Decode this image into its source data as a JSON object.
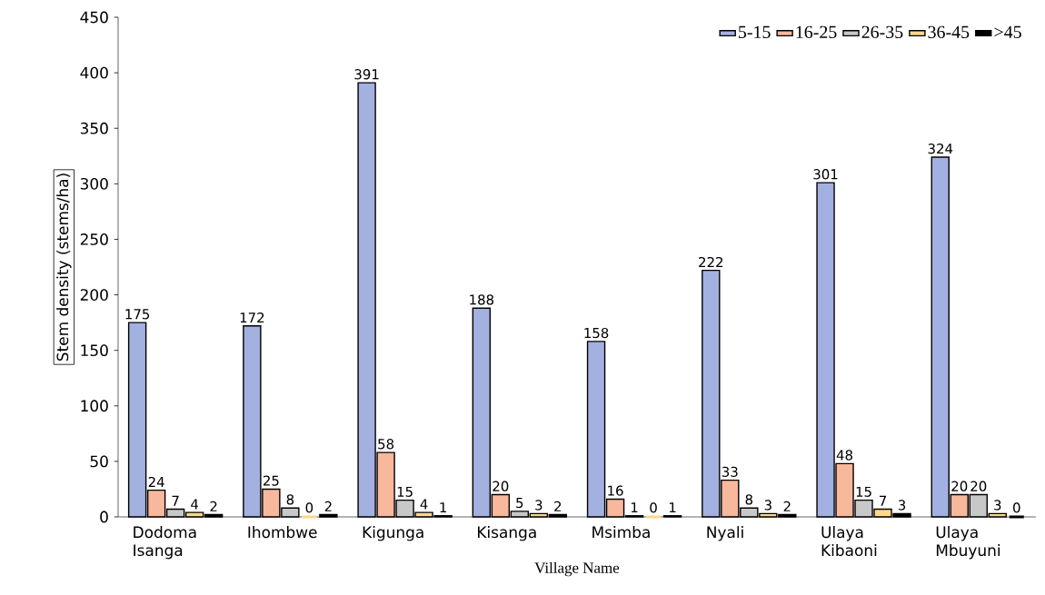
{
  "chart_data": {
    "type": "bar",
    "xlabel": "Village Name",
    "ylabel": "Stem density (stems/ha)",
    "categories": [
      "Dodoma Isanga",
      "Ihombwe",
      "Kigunga",
      "Kisanga",
      "Msimba",
      "Nyali",
      "Ulaya Kibaoni",
      "Ulaya Mbuyuni"
    ],
    "series": [
      {
        "name": "5-15",
        "color": "#a3b1e0",
        "values": [
          175,
          172,
          391,
          188,
          158,
          222,
          301,
          324
        ]
      },
      {
        "name": "16-25",
        "color": "#f7b89c",
        "values": [
          24,
          25,
          58,
          20,
          16,
          33,
          48,
          20
        ]
      },
      {
        "name": "26-35",
        "color": "#c8c8c8",
        "values": [
          7,
          8,
          15,
          5,
          1,
          8,
          15,
          20
        ]
      },
      {
        "name": "36-45",
        "color": "#ffd88a",
        "values": [
          4,
          0,
          4,
          3,
          0,
          3,
          7,
          3
        ]
      },
      {
        "name": ">45",
        "color": "#000000",
        "values": [
          2,
          2,
          1,
          2,
          1,
          2,
          3,
          0
        ]
      }
    ],
    "ylim": [
      0,
      450
    ],
    "yticks": [
      0,
      50,
      100,
      150,
      200,
      250,
      300,
      350,
      400,
      450
    ],
    "data_labels": true,
    "legend": "top right",
    "grid": false
  }
}
